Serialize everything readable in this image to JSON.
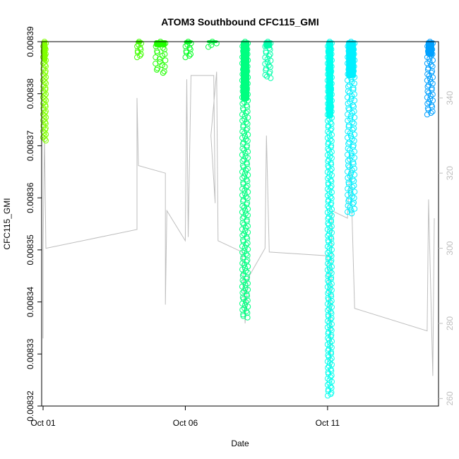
{
  "chart_data": {
    "type": "scatter",
    "title": "ATOM3 Southbound CFC115_GMI",
    "xlabel": "Date",
    "ylabel": "CFC115_GMI",
    "x_ticks": [
      {
        "label": "Oct 01",
        "day": 1
      },
      {
        "label": "Oct 06",
        "day": 6
      },
      {
        "label": "Oct 11",
        "day": 11
      }
    ],
    "xlim": [
      0.95,
      14.9
    ],
    "ylim": [
      0.00832,
      0.00839
    ],
    "y_ticks": [
      "0.00832",
      "0.00833",
      "0.00834",
      "0.00835",
      "0.00836",
      "0.00837",
      "0.00838",
      "0.00839"
    ],
    "y2lim": [
      258,
      355
    ],
    "y2_ticks": [
      "260",
      "280",
      "300",
      "320",
      "340"
    ],
    "grid": false,
    "series": [
      {
        "color": "#80ff00",
        "x": [
          1.0,
          1.1
        ],
        "y": [
          0.008371,
          0.00839
        ]
      },
      {
        "color": "#40ff00",
        "x": [
          4.3,
          4.45
        ],
        "y": [
          0.008387,
          0.00839
        ]
      },
      {
        "color": "#20ff00",
        "x": [
          4.95,
          5.3
        ],
        "y": [
          0.008384,
          0.00839
        ]
      },
      {
        "color": "#00ff20",
        "x": [
          6.0,
          6.2
        ],
        "y": [
          0.008387,
          0.00839
        ]
      },
      {
        "color": "#00ff40",
        "x": [
          6.8,
          7.1
        ],
        "y": [
          0.008389,
          0.00839
        ]
      },
      {
        "color": "#00ff80",
        "x": [
          8.0,
          8.2
        ],
        "y": [
          0.008337,
          0.00839
        ]
      },
      {
        "color": "#00ffaa",
        "x": [
          8.8,
          9.0
        ],
        "y": [
          0.008383,
          0.00839
        ]
      },
      {
        "color": "#00ffee",
        "x": [
          11.0,
          11.15
        ],
        "y": [
          0.008322,
          0.00839
        ]
      },
      {
        "color": "#00f0ff",
        "x": [
          11.7,
          11.95
        ],
        "y": [
          0.008357,
          0.00839
        ]
      },
      {
        "color": "#00a0ff",
        "x": [
          14.5,
          14.7
        ],
        "y": [
          0.008376,
          0.00839
        ]
      }
    ],
    "altitude_line": {
      "color": "#bebebe",
      "knots": [
        {
          "x": 1.0,
          "y": 300
        },
        {
          "x": 1.0,
          "y": 276
        },
        {
          "x": 1.0,
          "y": 300
        },
        {
          "x": 1.05,
          "y": 330
        },
        {
          "x": 1.1,
          "y": 300
        },
        {
          "x": 4.3,
          "y": 305
        },
        {
          "x": 4.3,
          "y": 340
        },
        {
          "x": 4.35,
          "y": 322
        },
        {
          "x": 5.3,
          "y": 320
        },
        {
          "x": 5.3,
          "y": 285
        },
        {
          "x": 5.35,
          "y": 310
        },
        {
          "x": 6.0,
          "y": 302
        },
        {
          "x": 6.05,
          "y": 345
        },
        {
          "x": 6.1,
          "y": 303
        },
        {
          "x": 6.2,
          "y": 346
        },
        {
          "x": 7.0,
          "y": 346
        },
        {
          "x": 7.05,
          "y": 312
        },
        {
          "x": 6.9,
          "y": 330
        },
        {
          "x": 7.1,
          "y": 347
        },
        {
          "x": 7.15,
          "y": 302
        },
        {
          "x": 8.0,
          "y": 299
        },
        {
          "x": 8.1,
          "y": 280
        },
        {
          "x": 8.2,
          "y": 292
        },
        {
          "x": 8.8,
          "y": 300
        },
        {
          "x": 8.85,
          "y": 330
        },
        {
          "x": 8.95,
          "y": 299
        },
        {
          "x": 11.0,
          "y": 298
        },
        {
          "x": 11.1,
          "y": 268
        },
        {
          "x": 11.15,
          "y": 310
        },
        {
          "x": 11.7,
          "y": 308
        },
        {
          "x": 11.8,
          "y": 325
        },
        {
          "x": 11.95,
          "y": 284
        },
        {
          "x": 14.5,
          "y": 278
        },
        {
          "x": 14.55,
          "y": 313
        },
        {
          "x": 14.7,
          "y": 266
        },
        {
          "x": 14.75,
          "y": 308
        }
      ]
    }
  }
}
